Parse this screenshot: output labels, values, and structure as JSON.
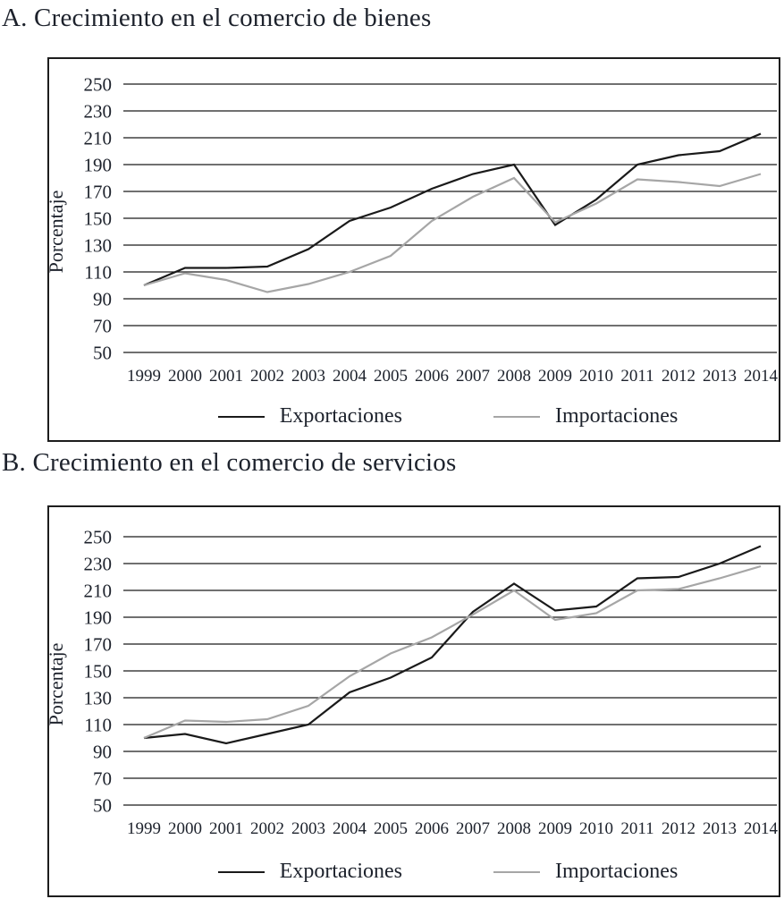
{
  "figure": {
    "panel_a_heading": "A. Crecimiento en el comercio de bienes",
    "panel_b_heading": "B. Crecimiento en el comercio de servicios"
  },
  "chart_data": [
    {
      "type": "line",
      "title": "A. Crecimiento en el comercio de bienes",
      "xlabel": "",
      "ylabel": "Porcentaje",
      "categories": [
        "1999",
        "2000",
        "2001",
        "2002",
        "2003",
        "2004",
        "2005",
        "2006",
        "2007",
        "2008",
        "2009",
        "2010",
        "2011",
        "2012",
        "2013",
        "2014"
      ],
      "yticks": [
        250,
        230,
        210,
        190,
        170,
        150,
        130,
        110,
        90,
        70,
        50
      ],
      "ylim": [
        50,
        250
      ],
      "grid": true,
      "legend_position": "bottom",
      "series": [
        {
          "name": "Exportaciones",
          "color": "#1a1a1a",
          "values": [
            100,
            113,
            113,
            114,
            127,
            148,
            158,
            172,
            183,
            190,
            145,
            164,
            190,
            197,
            200,
            213
          ]
        },
        {
          "name": "Importaciones",
          "color": "#a6a6a6",
          "values": [
            100,
            109,
            104,
            95,
            101,
            110,
            122,
            148,
            166,
            180,
            147,
            161,
            179,
            177,
            174,
            183
          ]
        }
      ]
    },
    {
      "type": "line",
      "title": "B. Crecimiento en el comercio de servicios",
      "xlabel": "",
      "ylabel": "Porcentaje",
      "categories": [
        "1999",
        "2000",
        "2001",
        "2002",
        "2003",
        "2004",
        "2005",
        "2006",
        "2007",
        "2008",
        "2009",
        "2010",
        "2011",
        "2012",
        "2013",
        "2014"
      ],
      "yticks": [
        250,
        230,
        210,
        190,
        170,
        150,
        130,
        110,
        90,
        70,
        50
      ],
      "ylim": [
        50,
        250
      ],
      "grid": true,
      "legend_position": "bottom",
      "series": [
        {
          "name": "Exportaciones",
          "color": "#1a1a1a",
          "values": [
            100,
            103,
            96,
            103,
            110,
            134,
            145,
            160,
            194,
            215,
            195,
            198,
            219,
            220,
            230,
            243
          ]
        },
        {
          "name": "Importaciones",
          "color": "#a6a6a6",
          "values": [
            100,
            113,
            112,
            114,
            124,
            146,
            163,
            175,
            192,
            210,
            188,
            193,
            210,
            211,
            219,
            228
          ]
        }
      ]
    }
  ]
}
